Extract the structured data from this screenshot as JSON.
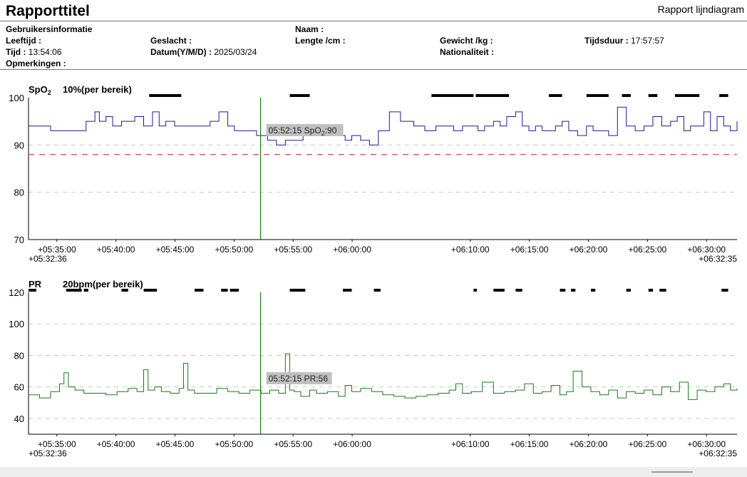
{
  "report": {
    "title": "Rapporttitel",
    "type_label": "Rapport lijndiagram"
  },
  "info": {
    "section_label": "Gebruikersinformatie",
    "name_label": "Naam :",
    "name_value": "",
    "age_label": "Leeftijd :",
    "age_value": "",
    "gender_label": "Geslacht :",
    "gender_value": "",
    "height_label": "Lengte /cm :",
    "height_value": "",
    "weight_label": "Gewicht /kg :",
    "weight_value": "",
    "duration_label": "Tijdsduur :",
    "duration_value": "17:57:57",
    "time_label": "Tijd :",
    "time_value": "13:54:06",
    "date_label": "Datum(Y/M/D) :",
    "date_value": "2025/03/24",
    "nationality_label": "Nationaliteit :",
    "nationality_value": "",
    "remarks_label": "Opmerkingen :",
    "remarks_value": ""
  },
  "colors": {
    "spo2_line": "#1a1a9a",
    "pr_line": "#1a7a1a",
    "cursor": "#1a7a1a",
    "threshold": "#cc2a2a",
    "grid": "#c8c8c8",
    "tooltip_bg": "#c0c0c0",
    "event_mark": "#000000"
  },
  "chart_data": [
    {
      "type": "line",
      "name_label": "SpO",
      "name_sub": "2",
      "range_label": "10%(per bereik)",
      "ylim": [
        70,
        100
      ],
      "yticks": [
        100,
        90,
        80,
        70
      ],
      "threshold": 88,
      "x_start_label": "+05:32:36",
      "x_end_label": "+06:32:35",
      "xticks": [
        "+05:35:00",
        "+05:40:00",
        "+05:45:00",
        "+05:50:00",
        "+05:55:00",
        "+06:00:00",
        "+06:10:00",
        "+06:15:00",
        "+06:20:00",
        "+06:25:00",
        "+06:30:00"
      ],
      "cursor_time": "05:52:15",
      "tooltip_prefix": "05:52:15 SpO",
      "tooltip_sub": "2",
      "tooltip_suffix": ":90",
      "events": [
        [
          5.45,
          6.9
        ],
        [
          11.8,
          12.7
        ],
        [
          18.2,
          20.1
        ],
        [
          20.2,
          21.7
        ],
        [
          23.5,
          24.1
        ],
        [
          25.2,
          26.2
        ],
        [
          26.8,
          27.2
        ],
        [
          28.0,
          28.4
        ],
        [
          29.2,
          30.3
        ],
        [
          31.2,
          31.6
        ]
      ],
      "series": [
        {
          "x": [
            0,
            1.0,
            1.2,
            2.4,
            2.6,
            3.0,
            3.2,
            3.5,
            3.8,
            4.2,
            4.5,
            4.8,
            5.2,
            5.6,
            5.9,
            6.2,
            6.6,
            7.0,
            7.4,
            7.8,
            8.2,
            8.6,
            9.0,
            9.3,
            9.8,
            10.3,
            10.8,
            11.2,
            11.6,
            12.0,
            12.4,
            12.8,
            13.2,
            13.6,
            13.9,
            14.3,
            14.6,
            15.0,
            15.4,
            15.8,
            16.3,
            16.8,
            17.4,
            17.9,
            18.4,
            18.8,
            19.2,
            19.6,
            20.0,
            20.3,
            20.6,
            21.0,
            21.3,
            21.6,
            22.0,
            22.3,
            22.6,
            22.9,
            23.2,
            23.5,
            23.8,
            24.1,
            24.4,
            24.8,
            25.2,
            25.5,
            25.8,
            26.2,
            26.6,
            27.0,
            27.4,
            27.8,
            28.2,
            28.6,
            29.0,
            29.3,
            29.6,
            29.9,
            30.2,
            30.5,
            30.8,
            31.1,
            31.4,
            31.7,
            32.0
          ],
          "values": [
            94,
            93,
            93,
            93,
            95,
            97,
            95,
            96,
            94,
            95,
            95,
            96,
            94,
            97,
            94,
            95,
            94,
            94,
            94,
            94,
            95,
            97,
            94,
            93,
            93,
            92,
            91,
            90,
            91,
            91,
            92,
            93,
            94,
            93,
            92,
            91,
            92,
            91,
            90,
            93,
            97,
            95,
            94,
            93,
            94,
            94,
            93,
            94,
            94,
            93,
            94,
            95,
            94,
            96,
            97,
            94,
            93,
            94,
            93,
            93,
            94,
            95,
            93,
            92,
            94,
            93,
            93,
            92,
            98,
            94,
            93,
            94,
            96,
            94,
            95,
            96,
            93,
            94,
            94,
            97,
            93,
            96,
            94,
            93,
            95
          ]
        }
      ]
    },
    {
      "type": "line",
      "name_label": "PR",
      "range_label": "20bpm(per bereik)",
      "ylim": [
        30,
        120
      ],
      "yticks": [
        120,
        100,
        80,
        60,
        40
      ],
      "x_start_label": "+05:32:36",
      "x_end_label": "+06:32:35",
      "xticks": [
        "+05:35:00",
        "+05:40:00",
        "+05:45:00",
        "+05:50:00",
        "+05:55:00",
        "+06:00:00",
        "+06:10:00",
        "+06:15:00",
        "+06:20:00",
        "+06:25:00",
        "+06:30:00"
      ],
      "cursor_time": "05:52:15",
      "tooltip_prefix": "05:52:15 PR:56",
      "events": [
        [
          0,
          0.35
        ],
        [
          1.7,
          2.4
        ],
        [
          2.5,
          2.7
        ],
        [
          4.2,
          4.5
        ],
        [
          5.2,
          5.8
        ],
        [
          7.5,
          7.9
        ],
        [
          8.7,
          9.0
        ],
        [
          9.1,
          9.5
        ],
        [
          11.8,
          12.5
        ],
        [
          14.2,
          14.6
        ],
        [
          15.6,
          15.9
        ],
        [
          20.1,
          20.25
        ],
        [
          21.0,
          21.5
        ],
        [
          22.0,
          22.3
        ],
        [
          24.0,
          24.25
        ],
        [
          24.5,
          24.7
        ],
        [
          25.4,
          25.6
        ],
        [
          27.0,
          27.2
        ],
        [
          28.0,
          28.2
        ],
        [
          28.5,
          28.8
        ],
        [
          31.3,
          31.6
        ]
      ],
      "series": [
        {
          "x": [
            0,
            0.5,
            1.0,
            1.4,
            1.6,
            1.8,
            2.1,
            2.5,
            3.0,
            3.5,
            4.0,
            4.5,
            4.9,
            5.2,
            5.4,
            5.7,
            6.0,
            6.4,
            6.8,
            7.0,
            7.2,
            7.5,
            8.0,
            8.5,
            9.0,
            9.5,
            10.0,
            10.5,
            10.9,
            11.3,
            11.6,
            11.8,
            12.0,
            12.3,
            12.7,
            13.0,
            13.5,
            14.0,
            14.3,
            14.6,
            15.0,
            15.5,
            16.0,
            16.5,
            17.0,
            17.5,
            18.0,
            18.5,
            19.0,
            19.3,
            19.6,
            20.0,
            20.5,
            21.0,
            21.5,
            22.0,
            22.4,
            22.8,
            23.2,
            23.6,
            24.0,
            24.3,
            24.6,
            25.0,
            25.4,
            25.8,
            26.2,
            26.6,
            27.0,
            27.4,
            27.8,
            28.2,
            28.6,
            29.0,
            29.4,
            29.8,
            30.2,
            30.6,
            31.0,
            31.4,
            31.7,
            32.0
          ],
          "values": [
            55,
            53,
            57,
            62,
            69,
            60,
            58,
            56,
            56,
            55,
            57,
            59,
            57,
            71,
            58,
            60,
            57,
            56,
            59,
            75,
            58,
            56,
            56,
            59,
            57,
            56,
            58,
            56,
            58,
            56,
            81,
            58,
            57,
            54,
            58,
            56,
            57,
            54,
            61,
            57,
            59,
            57,
            55,
            54,
            53,
            54,
            55,
            56,
            58,
            62,
            56,
            57,
            63,
            56,
            57,
            58,
            62,
            56,
            57,
            61,
            55,
            57,
            70,
            60,
            57,
            55,
            58,
            53,
            57,
            56,
            58,
            55,
            60,
            57,
            63,
            52,
            58,
            57,
            60,
            62,
            58,
            59
          ]
        }
      ]
    }
  ]
}
